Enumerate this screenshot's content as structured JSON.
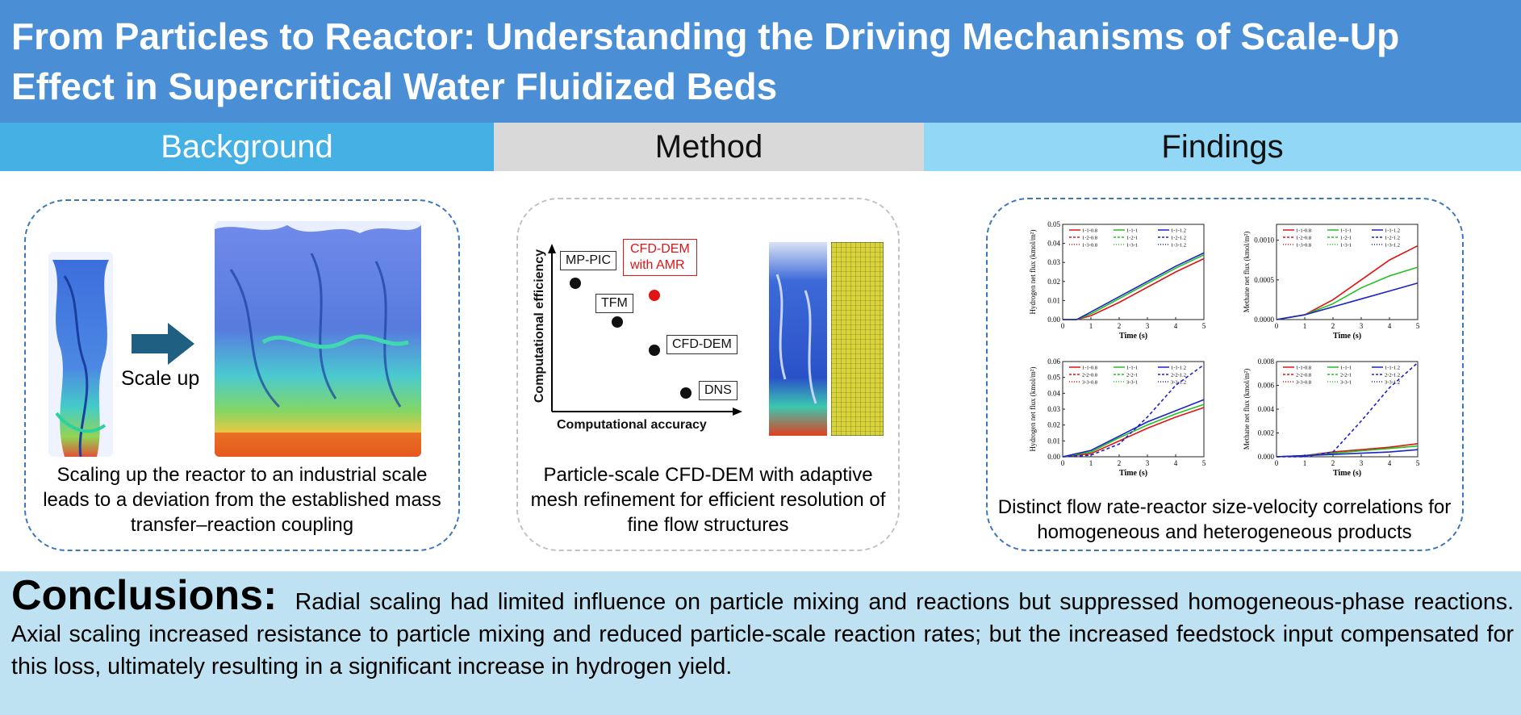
{
  "title": "From Particles to Reactor: Understanding the Driving Mechanisms of Scale-Up Effect in Supercritical Water Fluidized Beds",
  "headers": {
    "background": "Background",
    "method": "Method",
    "findings": "Findings"
  },
  "background": {
    "arrow_label": "Scale up",
    "caption": "Scaling up the reactor to an industrial scale leads to a deviation from the established mass transfer–reaction coupling"
  },
  "method": {
    "x_axis": "Computational accuracy",
    "y_axis": "Computational efficiency",
    "points": [
      {
        "label": "MP-PIC",
        "accuracy": 1,
        "efficiency": 4.3
      },
      {
        "label": "CFD-DEM with AMR",
        "accuracy": 3.0,
        "efficiency": 3.9
      },
      {
        "label": "TFM",
        "accuracy": 2.0,
        "efficiency": 2.9
      },
      {
        "label": "CFD-DEM",
        "accuracy": 3.0,
        "efficiency": 2.0
      },
      {
        "label": "DNS",
        "accuracy": 4.0,
        "efficiency": 1.0
      }
    ],
    "amr_label_line1": "CFD-DEM",
    "amr_label_line2": "with AMR",
    "highlight_color": "#e01414",
    "caption": "Particle-scale CFD-DEM with adaptive mesh refinement for efficient resolution of fine flow structures"
  },
  "findings": {
    "caption": "Distinct flow rate-reactor size-velocity correlations for homogeneous and heterogeneous products",
    "charts": [
      {
        "ylabel": "Hydrogen net flux (kmol/m²)",
        "xlabel": "Time (s)",
        "yticks": [
          "0.00",
          "0.01",
          "0.02",
          "0.03",
          "0.04",
          "0.05"
        ],
        "xticks": [
          "0",
          "1",
          "2",
          "3",
          "4",
          "5"
        ],
        "legend": [
          "1-1-0.8",
          "1-1-1",
          "1-1-1.2",
          "1-2-0.8",
          "1-2-1",
          "1-2-1.2",
          "1-3-0.8",
          "1-3-1",
          "1-3-1.2"
        ],
        "ylim": [
          0,
          0.05
        ],
        "chart_data": {
          "type": "line",
          "x": [
            0,
            0.5,
            1,
            2,
            3,
            4,
            5
          ],
          "series": [
            {
              "name": "1-1-0.8",
              "values": [
                0,
                0,
                0.002,
                0.009,
                0.017,
                0.025,
                0.032
              ]
            },
            {
              "name": "1-1-1",
              "values": [
                0,
                0,
                0.003,
                0.011,
                0.019,
                0.027,
                0.034
              ]
            },
            {
              "name": "1-1-1.2",
              "values": [
                0,
                0,
                0.004,
                0.012,
                0.02,
                0.028,
                0.035
              ]
            }
          ]
        }
      },
      {
        "ylabel": "Methane net flux (kmol/m²)",
        "xlabel": "Time (s)",
        "yticks": [
          "0.0000",
          "0.0005",
          "0.0010"
        ],
        "xticks": [
          "0",
          "1",
          "2",
          "3",
          "4",
          "5"
        ],
        "legend": [
          "1-1-0.8",
          "1-1-1",
          "1-1-1.2",
          "1-2-0.8",
          "1-2-1",
          "1-2-1.2",
          "1-3-0.8",
          "1-3-1",
          "1-3-1.2"
        ],
        "ylim": [
          0,
          0.0012
        ],
        "chart_data": {
          "type": "line",
          "x": [
            0,
            1,
            2,
            3,
            4,
            5
          ],
          "series": [
            {
              "name": "1-1-0.8",
              "values": [
                0,
                6e-05,
                0.00025,
                0.0005,
                0.00075,
                0.00093
              ]
            },
            {
              "name": "1-1-1",
              "values": [
                0,
                6e-05,
                0.0002,
                0.0004,
                0.00055,
                0.00066
              ]
            },
            {
              "name": "1-1-1.2",
              "values": [
                0,
                6e-05,
                0.00016,
                0.00026,
                0.00036,
                0.00046
              ]
            }
          ]
        }
      },
      {
        "ylabel": "Hydrogen net flux (kmol/m²)",
        "xlabel": "Time (s)",
        "yticks": [
          "0.00",
          "0.01",
          "0.02",
          "0.03",
          "0.04",
          "0.05",
          "0.06"
        ],
        "xticks": [
          "0",
          "1",
          "2",
          "3",
          "4",
          "5"
        ],
        "legend": [
          "1-1-0.8",
          "1-1-1",
          "1-1-1.2",
          "2-2-0.8",
          "2-2-1",
          "2-2-1.2",
          "3-3-0.8",
          "3-3-1",
          "3-3-1.2"
        ],
        "ylim": [
          0,
          0.06
        ],
        "chart_data": {
          "type": "line",
          "x": [
            0,
            1,
            2,
            3,
            4,
            5
          ],
          "series": [
            {
              "name": "1-1-0.8",
              "values": [
                0,
                0.002,
                0.01,
                0.018,
                0.025,
                0.031
              ]
            },
            {
              "name": "1-1-1",
              "values": [
                0,
                0.003,
                0.012,
                0.02,
                0.027,
                0.033
              ]
            },
            {
              "name": "1-1-1.2",
              "values": [
                0,
                0.004,
                0.013,
                0.022,
                0.029,
                0.036
              ]
            },
            {
              "name": "3-3-1.2",
              "values": [
                0,
                0.001,
                0.008,
                0.025,
                0.045,
                0.058
              ]
            }
          ]
        }
      },
      {
        "ylabel": "Methane net flux (kmol/m²)",
        "xlabel": "Time (s)",
        "yticks": [
          "0.000",
          "0.002",
          "0.004",
          "0.006",
          "0.008"
        ],
        "xticks": [
          "0",
          "1",
          "2",
          "3",
          "4",
          "5"
        ],
        "legend": [
          "1-1-0.8",
          "1-1-1",
          "1-1-1.2",
          "2-2-0.8",
          "2-2-1",
          "2-2-1.2",
          "3-3-0.8",
          "3-3-1",
          "3-3-1.2"
        ],
        "ylim": [
          0,
          0.008
        ],
        "chart_data": {
          "type": "line",
          "x": [
            0,
            1,
            2,
            3,
            4,
            5
          ],
          "series": [
            {
              "name": "1-1-0.8",
              "values": [
                0,
                0.0001,
                0.0004,
                0.0006,
                0.0008,
                0.0011
              ]
            },
            {
              "name": "1-1-1",
              "values": [
                0,
                0.0001,
                0.0003,
                0.0005,
                0.0007,
                0.0009
              ]
            },
            {
              "name": "1-1-1.2",
              "values": [
                0,
                0.0001,
                0.0002,
                0.0003,
                0.0004,
                0.0006
              ]
            },
            {
              "name": "3-3-0.8",
              "values": [
                0,
                0,
                0.0004,
                0.003,
                0.0058,
                0.0079
              ]
            }
          ]
        }
      }
    ]
  },
  "conclusions": {
    "heading": "Conclusions:",
    "text": "Radial scaling had limited influence on particle mixing and reactions but suppressed homogeneous-phase reactions. Axial scaling increased resistance to particle mixing and reduced particle-scale reaction rates; but the increased feedstock input compensated for this loss, ultimately resulting in a significant increase in hydrogen yield."
  },
  "colors": {
    "title_bar": "#4a8fd6",
    "background_header": "#45b0e3",
    "method_header": "#d9d9d9",
    "findings_header": "#92d7f6",
    "conclusion_bg": "#bfe2f3",
    "series_red": "#e01414",
    "series_green": "#22c022",
    "series_blue": "#1a22c8"
  }
}
